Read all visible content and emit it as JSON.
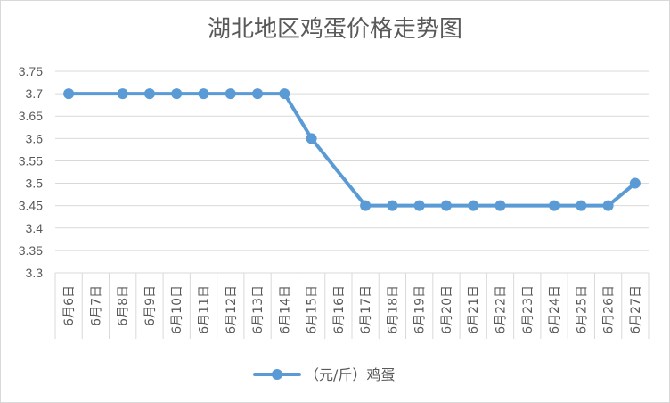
{
  "chart_data": {
    "type": "line",
    "title": "湖北地区鸡蛋价格走势图",
    "xlabel": "",
    "ylabel": "",
    "categories": [
      "6月6日",
      "6月7日",
      "6月8日",
      "6月9日",
      "6月10日",
      "6月11日",
      "6月12日",
      "6月13日",
      "6月14日",
      "6月15日",
      "6月16日",
      "6月17日",
      "6月18日",
      "6月19日",
      "6月20日",
      "6月21日",
      "6月22日",
      "6月23日",
      "6月24日",
      "6月25日",
      "6月26日",
      "6月27日"
    ],
    "series": [
      {
        "name": "（元/斤）鸡蛋",
        "color": "#5b9bd5",
        "points": [
          {
            "x": "6月6日",
            "y": 3.7
          },
          {
            "x": "6月8日",
            "y": 3.7
          },
          {
            "x": "6月9日",
            "y": 3.7
          },
          {
            "x": "6月10日",
            "y": 3.7
          },
          {
            "x": "6月11日",
            "y": 3.7
          },
          {
            "x": "6月12日",
            "y": 3.7
          },
          {
            "x": "6月13日",
            "y": 3.7
          },
          {
            "x": "6月14日",
            "y": 3.7
          },
          {
            "x": "6月15日",
            "y": 3.6
          },
          {
            "x": "6月17日",
            "y": 3.45
          },
          {
            "x": "6月18日",
            "y": 3.45
          },
          {
            "x": "6月19日",
            "y": 3.45
          },
          {
            "x": "6月20日",
            "y": 3.45
          },
          {
            "x": "6月21日",
            "y": 3.45
          },
          {
            "x": "6月22日",
            "y": 3.45
          },
          {
            "x": "6月24日",
            "y": 3.45
          },
          {
            "x": "6月25日",
            "y": 3.45
          },
          {
            "x": "6月26日",
            "y": 3.45
          },
          {
            "x": "6月27日",
            "y": 3.5
          }
        ]
      }
    ],
    "ylim": [
      3.3,
      3.75
    ],
    "yticks": [
      "3.3",
      "3.35",
      "3.4",
      "3.45",
      "3.5",
      "3.55",
      "3.6",
      "3.65",
      "3.7",
      "3.75"
    ],
    "grid": true,
    "legend_position": "bottom",
    "gridline_color": "#d9d9d9"
  }
}
